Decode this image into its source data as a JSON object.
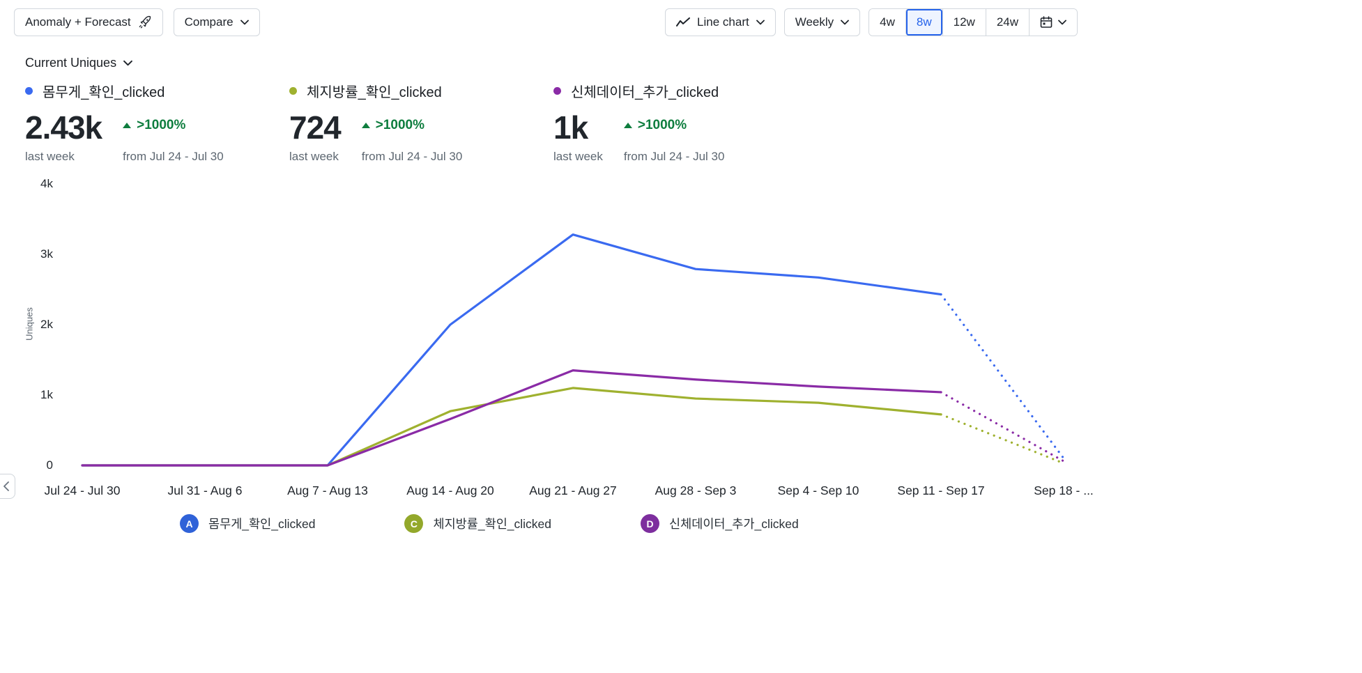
{
  "toolbar": {
    "anomaly_forecast_label": "Anomaly + Forecast",
    "compare_label": "Compare",
    "chart_type_label": "Line chart",
    "granularity_label": "Weekly",
    "range_options": [
      "4w",
      "8w",
      "12w",
      "24w"
    ],
    "range_selected": "8w"
  },
  "metric_selector_label": "Current Uniques",
  "metrics": [
    {
      "name": "몸무게_확인_clicked",
      "value": "2.43k",
      "value_caption": "last week",
      "change": ">1000%",
      "change_caption": "from Jul 24 - Jul 30",
      "color": "#3a6af0"
    },
    {
      "name": "체지방률_확인_clicked",
      "value": "724",
      "value_caption": "last week",
      "change": ">1000%",
      "change_caption": "from Jul 24 - Jul 30",
      "color": "#9fb12f"
    },
    {
      "name": "신체데이터_추가_clicked",
      "value": "1k",
      "value_caption": "last week",
      "change": ">1000%",
      "change_caption": "from Jul 24 - Jul 30",
      "color": "#8a2ba6"
    }
  ],
  "colors": {
    "positive_change": "#0e7d3e",
    "selected_range_accent": "#2563eb"
  },
  "chart_data": {
    "type": "line",
    "title": "",
    "xlabel": "",
    "ylabel": "Uniques",
    "ylim": [
      0,
      4000
    ],
    "yticks": [
      "0",
      "1k",
      "2k",
      "3k",
      "4k"
    ],
    "grid": false,
    "legend_position": "bottom",
    "categories": [
      "Jul 24 - Jul 30",
      "Jul 31 - Aug 6",
      "Aug 7 - Aug 13",
      "Aug 14 - Aug 20",
      "Aug 21 - Aug 27",
      "Aug 28 - Sep 3",
      "Sep 4 - Sep 10",
      "Sep 11 - Sep 17",
      "Sep 18 - ..."
    ],
    "series": [
      {
        "name": "몸무게_확인_clicked",
        "color": "#3a6af0",
        "values": [
          0,
          0,
          0,
          2000,
          3280,
          2790,
          2670,
          2430
        ],
        "forecast_end": 100
      },
      {
        "name": "체지방률_확인_clicked",
        "color": "#9fb12f",
        "values": [
          0,
          0,
          0,
          770,
          1100,
          950,
          890,
          724
        ],
        "forecast_end": 30
      },
      {
        "name": "신체데이터_추가_clicked",
        "color": "#8a2ba6",
        "values": [
          0,
          0,
          0,
          660,
          1350,
          1220,
          1120,
          1040
        ],
        "forecast_end": 60
      }
    ]
  },
  "legend": [
    {
      "badge": "A",
      "label": "몸무게_확인_clicked",
      "color": "#2f62d8"
    },
    {
      "badge": "C",
      "label": "체지방률_확인_clicked",
      "color": "#93a82b"
    },
    {
      "badge": "D",
      "label": "신체데이터_추가_clicked",
      "color": "#7d2e9e"
    }
  ]
}
